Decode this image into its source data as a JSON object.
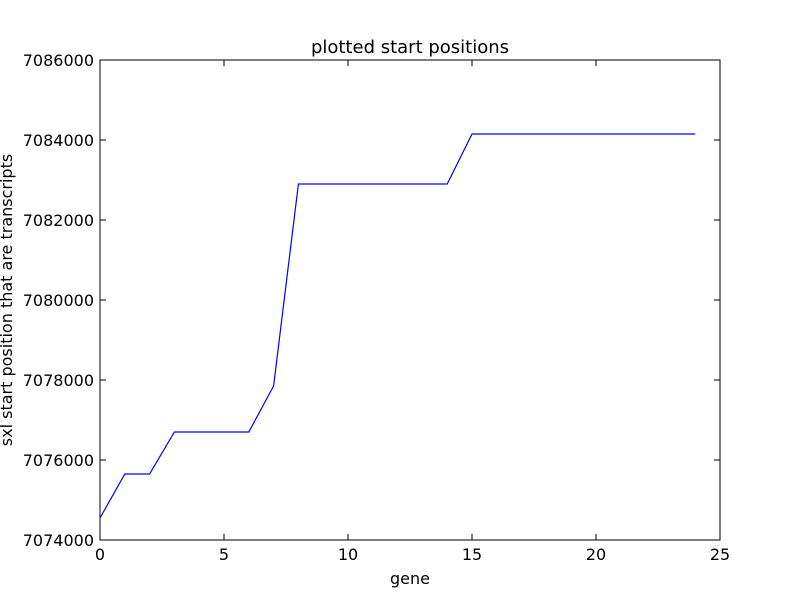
{
  "chart_data": {
    "type": "line",
    "title": "plotted start positions",
    "xlabel": "gene",
    "ylabel": "sxl start position that are transcripts",
    "xlim": [
      0,
      25
    ],
    "ylim": [
      7074000,
      7086000
    ],
    "x_ticks": [
      0,
      5,
      10,
      15,
      20,
      25
    ],
    "y_ticks": [
      7074000,
      7076000,
      7078000,
      7080000,
      7082000,
      7084000,
      7086000
    ],
    "grid": false,
    "series": [
      {
        "color": "#0000ff",
        "x": [
          0,
          1,
          2,
          3,
          4,
          5,
          6,
          7,
          8,
          9,
          10,
          11,
          12,
          13,
          14,
          15,
          16,
          17,
          18,
          19,
          20,
          21,
          22,
          23,
          24
        ],
        "y": [
          7074550,
          7075650,
          7075650,
          7076700,
          7076700,
          7076700,
          7076700,
          7077850,
          7082900,
          7082900,
          7082900,
          7082900,
          7082900,
          7082900,
          7082900,
          7084150,
          7084150,
          7084150,
          7084150,
          7084150,
          7084150,
          7084150,
          7084150,
          7084150,
          7084150
        ]
      }
    ]
  }
}
